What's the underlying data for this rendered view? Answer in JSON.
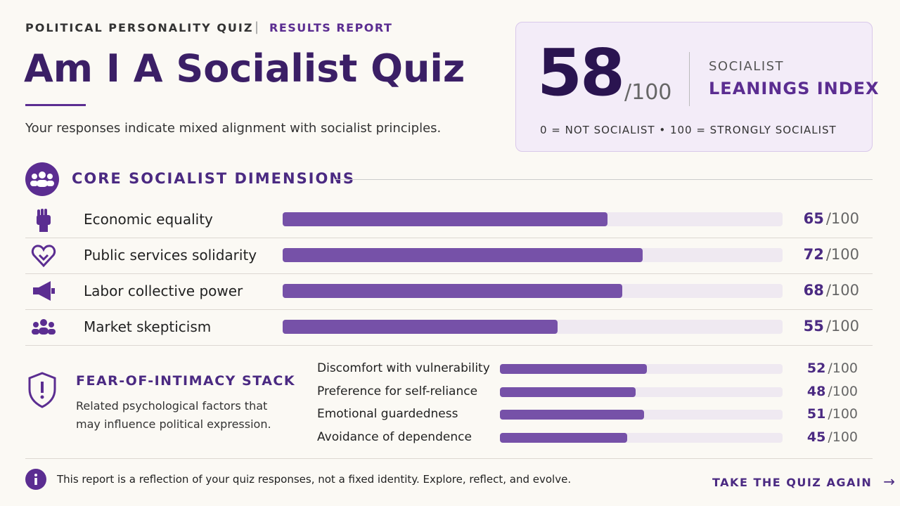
{
  "header": {
    "kicker": "POLITICAL PERSONALITY QUIZ",
    "section": "RESULTS REPORT",
    "title": "Am I A Socialist Quiz",
    "subtitle": "Your responses indicate mixed alignment with socialist principles."
  },
  "score_card": {
    "score": 58,
    "scale": {
      "value": 100,
      "label": "/100"
    },
    "label_top": "SOCIALIST",
    "label_main": "LEANINGS INDEX",
    "legend": "0 = NOT SOCIALIST • 100 = STRONGLY SOCIALIST"
  },
  "dimensions": {
    "title": "CORE SOCIALIST DIMENSIONS",
    "scale": {
      "value": 100,
      "label": "/100"
    },
    "items": [
      {
        "label": "Economic equality",
        "value": 65
      },
      {
        "label": "Public services solidarity",
        "value": 72
      },
      {
        "label": "Labor collective power",
        "value": 68
      },
      {
        "label": "Market skepticism",
        "value": 55
      }
    ]
  },
  "stack": {
    "title": "FEAR-OF-INTIMACY STACK",
    "description": "Related psychological factors that may influence political expression.",
    "scale": {
      "value": 100,
      "label": "/100"
    },
    "items": [
      {
        "label": "Discomfort with vulnerability",
        "value": 52
      },
      {
        "label": "Preference for self-reliance",
        "value": 48
      },
      {
        "label": "Emotional guardedness",
        "value": 51
      },
      {
        "label": "Avoidance of dependence",
        "value": 45
      }
    ]
  },
  "footer": {
    "note": "This report is a reflection of your quiz responses, not a fixed identity. Explore, reflect, and evolve.",
    "action": "TAKE THE QUIZ AGAIN"
  }
}
